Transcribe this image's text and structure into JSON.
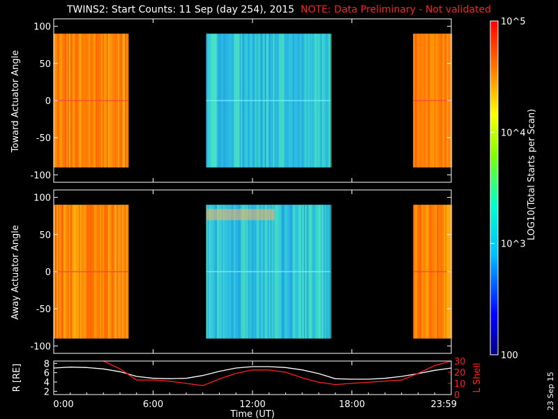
{
  "title": {
    "main": "TWINS2: Start Counts: 11 Sep (day 254), 2015",
    "note": "NOTE: Data Preliminary - Not validated"
  },
  "date_stamp": "23 Sep 15",
  "colorbar": {
    "label": "LOG10(Total Starts per Scan)",
    "ticks": [
      "10^5",
      "10^4",
      "10^3",
      "100"
    ],
    "range": [
      100,
      100000
    ],
    "scale": "log"
  },
  "xaxis": {
    "label": "Time (UT)",
    "ticks": [
      "0:00",
      "6:00",
      "12:00",
      "18:00",
      "23:59"
    ],
    "range_hours": [
      0,
      24
    ]
  },
  "chart_data": [
    {
      "type": "heatmap",
      "ylabel": "Toward Actuator Angle",
      "yticks": [
        "100",
        "50",
        "0",
        "-50",
        "-100"
      ],
      "ylim": [
        -110,
        110
      ],
      "data_segments_hours": [
        [
          0.0,
          4.5
        ],
        [
          9.2,
          16.7
        ],
        [
          21.7,
          24.0
        ]
      ]
    },
    {
      "type": "heatmap",
      "ylabel": "Away Actuator Angle",
      "yticks": [
        "100",
        "50",
        "0",
        "-50",
        "-100"
      ],
      "ylim": [
        -110,
        110
      ],
      "data_segments_hours": [
        [
          0.0,
          4.5
        ],
        [
          9.2,
          16.7
        ],
        [
          21.7,
          24.0
        ]
      ]
    },
    {
      "type": "line",
      "ylabel_left": "R [RE]",
      "ylabel_right": "L Shell",
      "yticks_left": [
        "8",
        "6",
        "4",
        "2"
      ],
      "yticks_right": [
        "30",
        "20",
        "10",
        "0"
      ],
      "ylim_left": [
        1.3,
        8.5
      ],
      "ylim_right": [
        0,
        30
      ],
      "x": [
        0,
        1,
        2,
        3,
        4,
        5,
        6,
        7,
        8,
        9,
        10,
        11,
        12,
        13,
        14,
        15,
        16,
        17,
        18,
        19,
        20,
        21,
        22,
        23,
        24
      ],
      "series": [
        {
          "name": "R",
          "axis": "left",
          "color": "#ffffff",
          "values": [
            7.0,
            7.2,
            7.1,
            6.8,
            6.2,
            5.2,
            4.8,
            4.7,
            4.8,
            5.4,
            6.3,
            7.0,
            7.3,
            7.3,
            7.1,
            6.6,
            5.8,
            4.7,
            4.6,
            4.6,
            4.8,
            5.2,
            5.8,
            6.5,
            7.0
          ]
        },
        {
          "name": "L Shell",
          "axis": "right",
          "color": "#ff2020",
          "values": [
            null,
            null,
            null,
            30,
            23,
            13,
            13,
            12,
            10,
            8,
            14,
            19,
            22,
            22,
            20,
            15,
            11,
            9,
            10,
            11,
            12,
            13,
            19,
            26,
            30
          ]
        }
      ]
    }
  ]
}
